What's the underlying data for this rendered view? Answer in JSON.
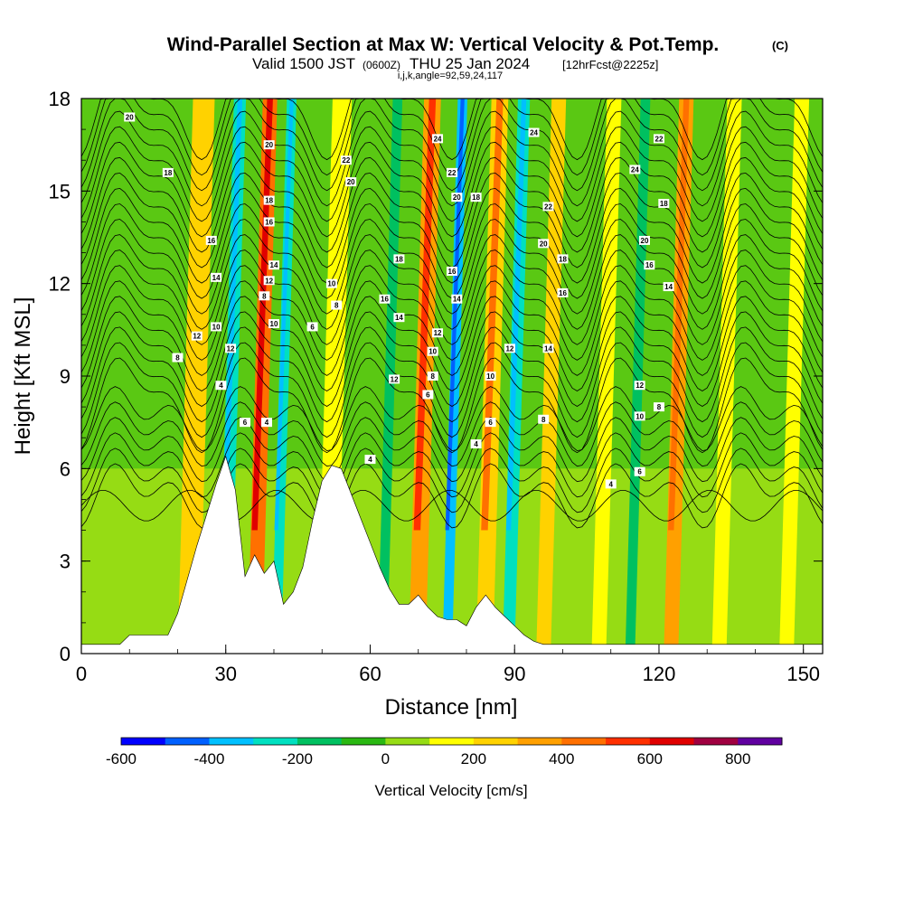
{
  "chart_data": {
    "type": "heatmap",
    "title": "Wind-Parallel Section at Max W: Vertical Velocity & Pot.Temp.",
    "title_mark": "(C)",
    "subtitle_valid": "Valid 1500 JST",
    "subtitle_utc": "(0600Z)",
    "subtitle_date": "THU 25 Jan 2024",
    "subtitle_fcst": "[12hrFcst@2225z]",
    "subtitle_index": "i,j,k,angle=92,59,24,117",
    "xlabel": "Distance [nm]",
    "ylabel": "Height [Kft MSL]",
    "xlim": [
      0,
      154
    ],
    "ylim": [
      0,
      18
    ],
    "xticks": [
      "0",
      "30",
      "60",
      "90",
      "120",
      "150"
    ],
    "yticks": [
      "0",
      "3",
      "6",
      "9",
      "12",
      "15",
      "18"
    ],
    "colorbar": {
      "label": "Vertical Velocity [cm/s]",
      "ticks": [
        "-600",
        "-400",
        "-200",
        "0",
        "200",
        "400",
        "600",
        "800"
      ],
      "levels": [
        -600,
        -500,
        -400,
        -300,
        -200,
        -100,
        0,
        100,
        200,
        300,
        400,
        500,
        600,
        700,
        800,
        900
      ],
      "colors": [
        "#0000ff",
        "#0060ff",
        "#00c0ff",
        "#00e0c0",
        "#00c060",
        "#2ab812",
        "#96dc14",
        "#ffff00",
        "#ffd200",
        "#ffa000",
        "#ff7000",
        "#ff3000",
        "#e00000",
        "#a00040",
        "#6000a0"
      ]
    },
    "velocity_bands": [
      {
        "x": 20,
        "w": 4.5,
        "v": 200
      },
      {
        "x": 28.5,
        "w": 2.5,
        "v": -250
      },
      {
        "x": 34.5,
        "w": 3,
        "v": 450
      },
      {
        "x": 39.5,
        "w": 2,
        "v": -300
      },
      {
        "x": 49,
        "w": 4,
        "v": 150
      },
      {
        "x": 61.5,
        "w": 2,
        "v": -150
      },
      {
        "x": 68,
        "w": 3.5,
        "v": 380
      },
      {
        "x": 75,
        "w": 2,
        "v": -350
      },
      {
        "x": 82,
        "w": 3.5,
        "v": 250
      },
      {
        "x": 87.5,
        "w": 2.5,
        "v": -250
      },
      {
        "x": 94.5,
        "w": 3,
        "v": 200
      },
      {
        "x": 106,
        "w": 3,
        "v": 150
      },
      {
        "x": 113,
        "w": 2,
        "v": -150
      },
      {
        "x": 121,
        "w": 3,
        "v": 330
      },
      {
        "x": 131,
        "w": 3,
        "v": 120
      },
      {
        "x": 145,
        "w": 3,
        "v": 180
      }
    ],
    "terrain": {
      "x": [
        0,
        8,
        10,
        18,
        20,
        24,
        28,
        30,
        32,
        34,
        36,
        38,
        40,
        42,
        44,
        46,
        48,
        50,
        52,
        54,
        56,
        58,
        60,
        62,
        64,
        66,
        68,
        70,
        72,
        74,
        76,
        78,
        80,
        82,
        84,
        86,
        88,
        90,
        92,
        94,
        96,
        98,
        154
      ],
      "height_kft": [
        0.3,
        0.3,
        0.6,
        0.6,
        1.3,
        3.5,
        5.5,
        6.4,
        5.3,
        2.5,
        3.2,
        2.6,
        3.0,
        1.6,
        2.0,
        2.8,
        4.3,
        5.6,
        6.1,
        6.0,
        5.2,
        4.4,
        3.6,
        2.8,
        2.1,
        1.6,
        1.6,
        1.9,
        1.5,
        1.2,
        1.1,
        1.1,
        0.9,
        1.5,
        1.9,
        1.5,
        1.2,
        0.9,
        0.6,
        0.4,
        0.3,
        0.3,
        0.3
      ]
    },
    "contour_labels": [
      {
        "t": "20",
        "x": 10,
        "y": 17.4
      },
      {
        "t": "18",
        "x": 18,
        "y": 15.6
      },
      {
        "t": "16",
        "x": 27,
        "y": 13.4
      },
      {
        "t": "14",
        "x": 28,
        "y": 12.2
      },
      {
        "t": "10",
        "x": 28,
        "y": 10.6
      },
      {
        "t": "12",
        "x": 24,
        "y": 10.3
      },
      {
        "t": "8",
        "x": 20,
        "y": 9.6
      },
      {
        "t": "12",
        "x": 31,
        "y": 9.9
      },
      {
        "t": "4",
        "x": 29,
        "y": 8.7
      },
      {
        "t": "6",
        "x": 34,
        "y": 7.5
      },
      {
        "t": "20",
        "x": 39,
        "y": 16.5
      },
      {
        "t": "18",
        "x": 39,
        "y": 14.7
      },
      {
        "t": "16",
        "x": 39,
        "y": 14.0
      },
      {
        "t": "14",
        "x": 40,
        "y": 12.6
      },
      {
        "t": "12",
        "x": 39,
        "y": 12.1
      },
      {
        "t": "8",
        "x": 38,
        "y": 11.6
      },
      {
        "t": "10",
        "x": 40,
        "y": 10.7
      },
      {
        "t": "4",
        "x": 38.5,
        "y": 7.5
      },
      {
        "t": "22",
        "x": 55,
        "y": 16.0
      },
      {
        "t": "20",
        "x": 56,
        "y": 15.3
      },
      {
        "t": "10",
        "x": 52,
        "y": 12.0
      },
      {
        "t": "8",
        "x": 53,
        "y": 11.3
      },
      {
        "t": "6",
        "x": 48,
        "y": 10.6
      },
      {
        "t": "4",
        "x": 60,
        "y": 6.3
      },
      {
        "t": "18",
        "x": 66,
        "y": 12.8
      },
      {
        "t": "16",
        "x": 63,
        "y": 11.5
      },
      {
        "t": "14",
        "x": 66,
        "y": 10.9
      },
      {
        "t": "12",
        "x": 65,
        "y": 8.9
      },
      {
        "t": "24",
        "x": 74,
        "y": 16.7
      },
      {
        "t": "22",
        "x": 77,
        "y": 15.6
      },
      {
        "t": "20",
        "x": 78,
        "y": 14.8
      },
      {
        "t": "18",
        "x": 82,
        "y": 14.8
      },
      {
        "t": "16",
        "x": 77,
        "y": 12.4
      },
      {
        "t": "14",
        "x": 78,
        "y": 11.5
      },
      {
        "t": "12",
        "x": 74,
        "y": 10.4
      },
      {
        "t": "10",
        "x": 73,
        "y": 9.8
      },
      {
        "t": "8",
        "x": 73,
        "y": 9.0
      },
      {
        "t": "6",
        "x": 72,
        "y": 8.4
      },
      {
        "t": "10",
        "x": 85,
        "y": 9.0
      },
      {
        "t": "6",
        "x": 85,
        "y": 7.5
      },
      {
        "t": "4",
        "x": 82,
        "y": 6.8
      },
      {
        "t": "24",
        "x": 94,
        "y": 16.9
      },
      {
        "t": "22",
        "x": 97,
        "y": 14.5
      },
      {
        "t": "20",
        "x": 96,
        "y": 13.3
      },
      {
        "t": "18",
        "x": 100,
        "y": 12.8
      },
      {
        "t": "16",
        "x": 100,
        "y": 11.7
      },
      {
        "t": "12",
        "x": 89,
        "y": 9.9
      },
      {
        "t": "14",
        "x": 97,
        "y": 9.9
      },
      {
        "t": "8",
        "x": 96,
        "y": 7.6
      },
      {
        "t": "4",
        "x": 110,
        "y": 5.5
      },
      {
        "t": "24",
        "x": 115,
        "y": 15.7
      },
      {
        "t": "22",
        "x": 120,
        "y": 16.7
      },
      {
        "t": "18",
        "x": 121,
        "y": 14.6
      },
      {
        "t": "20",
        "x": 117,
        "y": 13.4
      },
      {
        "t": "16",
        "x": 118,
        "y": 12.6
      },
      {
        "t": "14",
        "x": 122,
        "y": 11.9
      },
      {
        "t": "12",
        "x": 116,
        "y": 8.7
      },
      {
        "t": "10",
        "x": 116,
        "y": 7.7
      },
      {
        "t": "8",
        "x": 120,
        "y": 8.0
      },
      {
        "t": "6",
        "x": 116,
        "y": 5.9
      }
    ]
  }
}
